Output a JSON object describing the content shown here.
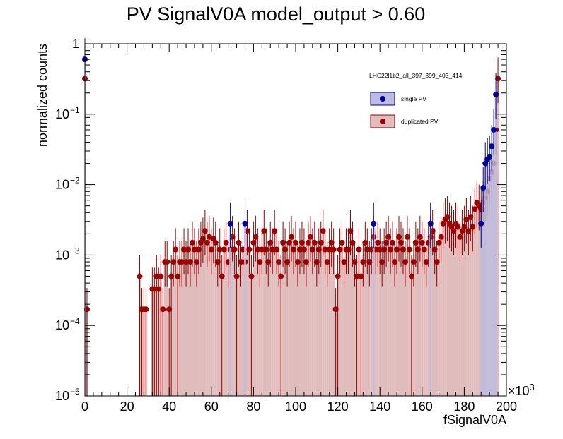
{
  "chart_data": {
    "type": "histogram",
    "title": "PV SignalV0A  model_output > 0.60",
    "xlabel": "fSignalV0A",
    "ylabel": "normalized counts",
    "x_multiplier_label": "×10",
    "x_multiplier_exp": "3",
    "xlim": [
      0,
      200000
    ],
    "ylim": [
      1e-05,
      1
    ],
    "y_scale": "log",
    "x_ticks": [
      0,
      20,
      40,
      60,
      80,
      100,
      120,
      140,
      160,
      180,
      200
    ],
    "x_tick_labels": [
      "0",
      "20",
      "40",
      "60",
      "80",
      "100",
      "120",
      "140",
      "160",
      "180",
      "200"
    ],
    "y_ticks": [
      {
        "value": 1e-05,
        "base": "10",
        "exp": "−5"
      },
      {
        "value": 0.0001,
        "base": "10",
        "exp": "−4"
      },
      {
        "value": 0.001,
        "base": "10",
        "exp": "−3"
      },
      {
        "value": 0.01,
        "base": "10",
        "exp": "−2"
      },
      {
        "value": 0.1,
        "base": "10",
        "exp": "−1"
      },
      {
        "value": 1,
        "base": "1",
        "exp": ""
      }
    ],
    "legend": {
      "title": "LHC22l1b2_all_397_399_403_414",
      "placement": "top-right",
      "entries": [
        {
          "label": "single PV",
          "fill": "#bcbce0",
          "marker": "#00009a"
        },
        {
          "label": "duplicated PV",
          "fill": "#e0bcbc",
          "marker": "#9a0000"
        }
      ]
    },
    "series": [
      {
        "name": "single PV",
        "color": "#00009a",
        "fill": "#bcbce0",
        "points": [
          [
            0,
            0.6
          ],
          [
            69000,
            0.0028
          ],
          [
            76000,
            0.0028
          ],
          [
            137000,
            0.0028
          ],
          [
            164000,
            0.0028
          ],
          [
            188000,
            0.0028
          ],
          [
            189000,
            0.009
          ],
          [
            190000,
            0.02
          ],
          [
            191000,
            0.023
          ],
          [
            192000,
            0.025
          ],
          [
            193000,
            0.035
          ],
          [
            194000,
            0.06
          ],
          [
            195000,
            0.19
          ]
        ]
      },
      {
        "name": "duplicated PV",
        "color": "#9a0000",
        "fill": "#e0bcbc",
        "points": [
          [
            0,
            0.32
          ],
          [
            1000,
            0.00017
          ],
          [
            26000,
            0.0005
          ],
          [
            27000,
            0.00017
          ],
          [
            28000,
            0.00017
          ],
          [
            29000,
            0.00017
          ],
          [
            32000,
            0.00033
          ],
          [
            33000,
            0.00033
          ],
          [
            34000,
            0.0005
          ],
          [
            35000,
            0.00033
          ],
          [
            36000,
            0.0005
          ],
          [
            37000,
            0.00017
          ],
          [
            38000,
            0.0008
          ],
          [
            39000,
            0.0008
          ],
          [
            40000,
            0.00017
          ],
          [
            41000,
            0.0005
          ],
          [
            42000,
            0.0008
          ],
          [
            43000,
            0.0012
          ],
          [
            44000,
            0.0005
          ],
          [
            45000,
            0.0008
          ],
          [
            46000,
            0.0008
          ],
          [
            47000,
            0.0012
          ],
          [
            48000,
            0.0008
          ],
          [
            49000,
            0.0012
          ],
          [
            50000,
            0.0008
          ],
          [
            51000,
            0.0015
          ],
          [
            52000,
            0.0012
          ],
          [
            53000,
            0.0008
          ],
          [
            54000,
            0.0012
          ],
          [
            55000,
            0.0015
          ],
          [
            56000,
            0.0017
          ],
          [
            57000,
            0.0022
          ],
          [
            58000,
            0.0015
          ],
          [
            59000,
            0.0018
          ],
          [
            60000,
            0.0012
          ],
          [
            61000,
            0.0017
          ],
          [
            62000,
            0.0015
          ],
          [
            63000,
            0.0008
          ],
          [
            64000,
            0.0012
          ],
          [
            65000,
            0.0005
          ],
          [
            66000,
            0.0012
          ],
          [
            67000,
            0.0015
          ],
          [
            68000,
            0.0008
          ],
          [
            69000,
            0.0012
          ],
          [
            70000,
            0.0018
          ],
          [
            71000,
            0.0012
          ],
          [
            72000,
            0.0005
          ],
          [
            73000,
            0.0015
          ],
          [
            74000,
            0.0008
          ],
          [
            75000,
            0.0012
          ],
          [
            76000,
            0.0008
          ],
          [
            77000,
            0.0022
          ],
          [
            78000,
            0.0012
          ],
          [
            79000,
            0.0005
          ],
          [
            80000,
            0.0015
          ],
          [
            81000,
            0.0018
          ],
          [
            82000,
            0.0012
          ],
          [
            83000,
            0.0008
          ],
          [
            84000,
            0.0012
          ],
          [
            85000,
            0.0022
          ],
          [
            86000,
            0.0012
          ],
          [
            87000,
            0.0008
          ],
          [
            88000,
            0.0015
          ],
          [
            89000,
            0.0012
          ],
          [
            90000,
            0.0022
          ],
          [
            91000,
            0.0012
          ],
          [
            92000,
            0.0008
          ],
          [
            93000,
            0.0005
          ],
          [
            94000,
            0.0015
          ],
          [
            95000,
            0.0012
          ],
          [
            96000,
            0.0008
          ],
          [
            97000,
            0.0015
          ],
          [
            98000,
            0.0018
          ],
          [
            99000,
            0.0012
          ],
          [
            100000,
            0.0015
          ],
          [
            101000,
            0.0008
          ],
          [
            102000,
            0.0012
          ],
          [
            103000,
            0.0015
          ],
          [
            104000,
            0.0012
          ],
          [
            105000,
            0.0008
          ],
          [
            106000,
            0.0015
          ],
          [
            107000,
            0.0018
          ],
          [
            108000,
            0.0012
          ],
          [
            109000,
            0.0015
          ],
          [
            110000,
            0.0008
          ],
          [
            111000,
            0.0012
          ],
          [
            112000,
            0.0015
          ],
          [
            113000,
            0.0022
          ],
          [
            114000,
            0.0012
          ],
          [
            115000,
            0.0008
          ],
          [
            116000,
            0.0012
          ],
          [
            117000,
            0.0015
          ],
          [
            118000,
            0.0012
          ],
          [
            119000,
            0.00017
          ],
          [
            120000,
            0.0005
          ],
          [
            121000,
            0.0012
          ],
          [
            122000,
            0.0015
          ],
          [
            123000,
            0.0008
          ],
          [
            124000,
            0.0012
          ],
          [
            125000,
            0.0012
          ],
          [
            126000,
            0.0022
          ],
          [
            127000,
            0.0015
          ],
          [
            128000,
            0.0008
          ],
          [
            129000,
            0.0005
          ],
          [
            130000,
            0.0012
          ],
          [
            131000,
            0.0005
          ],
          [
            132000,
            0.0008
          ],
          [
            133000,
            0.0015
          ],
          [
            134000,
            0.0012
          ],
          [
            135000,
            0.0008
          ],
          [
            136000,
            0.0012
          ],
          [
            137000,
            0.0018
          ],
          [
            138000,
            0.0012
          ],
          [
            139000,
            0.0015
          ],
          [
            140000,
            0.0012
          ],
          [
            141000,
            0.0008
          ],
          [
            142000,
            0.0012
          ],
          [
            143000,
            0.0015
          ],
          [
            144000,
            0.0018
          ],
          [
            145000,
            0.0012
          ],
          [
            146000,
            0.0015
          ],
          [
            147000,
            0.0008
          ],
          [
            148000,
            0.0012
          ],
          [
            149000,
            0.0018
          ],
          [
            150000,
            0.0015
          ],
          [
            151000,
            0.0012
          ],
          [
            152000,
            0.0008
          ],
          [
            153000,
            0.0018
          ],
          [
            154000,
            0.0012
          ],
          [
            155000,
            0.0005
          ],
          [
            156000,
            0.0008
          ],
          [
            157000,
            0.0015
          ],
          [
            158000,
            0.0012
          ],
          [
            159000,
            0.0018
          ],
          [
            160000,
            0.0015
          ],
          [
            161000,
            0.0012
          ],
          [
            162000,
            0.0008
          ],
          [
            163000,
            0.0015
          ],
          [
            164000,
            0.0018
          ],
          [
            165000,
            0.0022
          ],
          [
            166000,
            0.0012
          ],
          [
            167000,
            0.0008
          ],
          [
            168000,
            0.0015
          ],
          [
            169000,
            0.0018
          ],
          [
            170000,
            0.0028
          ],
          [
            171000,
            0.0032
          ],
          [
            172000,
            0.0035
          ],
          [
            173000,
            0.0028
          ],
          [
            174000,
            0.0025
          ],
          [
            175000,
            0.0022
          ],
          [
            176000,
            0.0028
          ],
          [
            177000,
            0.0025
          ],
          [
            178000,
            0.0018
          ],
          [
            179000,
            0.0022
          ],
          [
            180000,
            0.0025
          ],
          [
            181000,
            0.0032
          ],
          [
            182000,
            0.0022
          ],
          [
            183000,
            0.0035
          ],
          [
            184000,
            0.0025
          ],
          [
            185000,
            0.0045
          ],
          [
            186000,
            0.0055
          ],
          [
            187000,
            0.005
          ],
          [
            188000,
            0.0045
          ],
          [
            189000,
            0.0055
          ],
          [
            190000,
            0.0065
          ],
          [
            191000,
            0.008
          ],
          [
            192000,
            0.012
          ],
          [
            193000,
            0.015
          ],
          [
            194000,
            0.02
          ],
          [
            195000,
            0.06
          ],
          [
            196000,
            0.32
          ]
        ]
      }
    ]
  }
}
